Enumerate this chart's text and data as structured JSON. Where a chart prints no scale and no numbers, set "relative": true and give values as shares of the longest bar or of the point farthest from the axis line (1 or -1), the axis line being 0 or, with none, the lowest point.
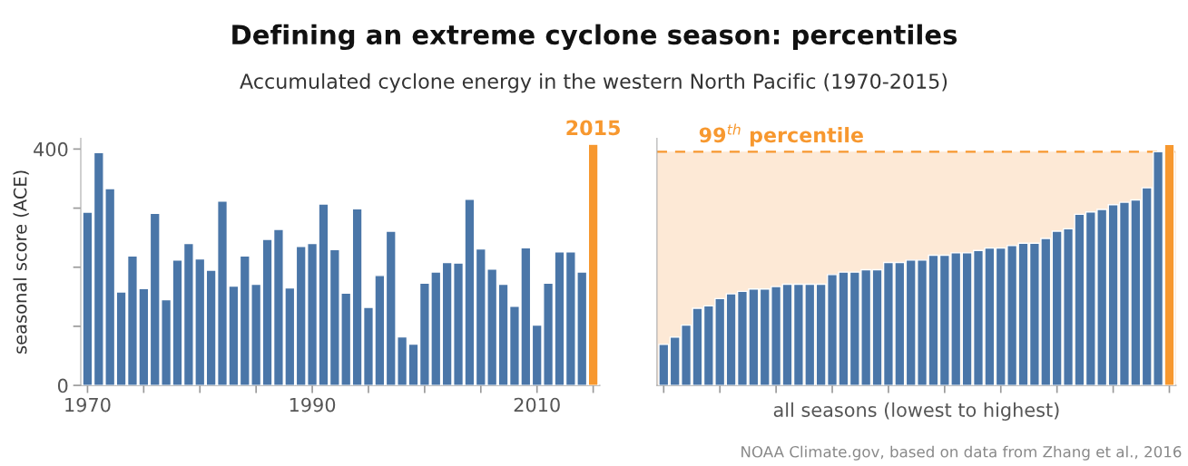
{
  "chart_data": [
    {
      "type": "bar",
      "title": "Defining an extreme cyclone season: percentiles",
      "subtitle": "Accumulated cyclone energy in the western North Pacific (1970-2015)",
      "ylabel": "seasonal score (ACE)",
      "x": [
        1970,
        1971,
        1972,
        1973,
        1974,
        1975,
        1976,
        1977,
        1978,
        1979,
        1980,
        1981,
        1982,
        1983,
        1984,
        1985,
        1986,
        1987,
        1988,
        1989,
        1990,
        1991,
        1992,
        1993,
        1994,
        1995,
        1996,
        1997,
        1998,
        1999,
        2000,
        2001,
        2002,
        2003,
        2004,
        2005,
        2006,
        2007,
        2008,
        2009,
        2010,
        2011,
        2012,
        2013,
        2014,
        2015
      ],
      "values": [
        293,
        394,
        333,
        158,
        219,
        164,
        291,
        145,
        212,
        240,
        214,
        195,
        312,
        168,
        219,
        171,
        247,
        264,
        165,
        235,
        240,
        307,
        230,
        156,
        299,
        132,
        186,
        261,
        82,
        70,
        173,
        192,
        208,
        207,
        315,
        231,
        197,
        171,
        134,
        233,
        102,
        173,
        226,
        226,
        192,
        408
      ],
      "colors": [
        "#4a76a8",
        "#4a76a8",
        "#4a76a8",
        "#4a76a8",
        "#4a76a8",
        "#4a76a8",
        "#4a76a8",
        "#4a76a8",
        "#4a76a8",
        "#4a76a8",
        "#4a76a8",
        "#4a76a8",
        "#4a76a8",
        "#4a76a8",
        "#4a76a8",
        "#4a76a8",
        "#4a76a8",
        "#4a76a8",
        "#4a76a8",
        "#4a76a8",
        "#4a76a8",
        "#4a76a8",
        "#4a76a8",
        "#4a76a8",
        "#4a76a8",
        "#4a76a8",
        "#4a76a8",
        "#4a76a8",
        "#4a76a8",
        "#4a76a8",
        "#4a76a8",
        "#4a76a8",
        "#4a76a8",
        "#4a76a8",
        "#4a76a8",
        "#4a76a8",
        "#4a76a8",
        "#4a76a8",
        "#4a76a8",
        "#4a76a8",
        "#4a76a8",
        "#4a76a8",
        "#4a76a8",
        "#4a76a8",
        "#4a76a8",
        "#f7982f"
      ],
      "xlim": [
        1969.4,
        2015.6
      ],
      "xticks": [
        1970,
        {
          "value": 1975,
          "label": null
        },
        {
          "value": 1980,
          "label": null
        },
        {
          "value": 1985,
          "label": null
        },
        1990,
        {
          "value": 1995,
          "label": null
        },
        {
          "value": 2000,
          "label": null
        },
        {
          "value": 2005,
          "label": null
        },
        2010,
        {
          "value": 2015,
          "label": null
        }
      ],
      "ylim": [
        0,
        418
      ],
      "yticks": [
        0,
        {
          "value": 100,
          "label": null
        },
        {
          "value": 200,
          "label": null
        },
        {
          "value": 300,
          "label": null
        },
        400
      ],
      "annotations": [
        {
          "text": "2015",
          "x": 2015,
          "y": 408
        }
      ],
      "grid": false
    },
    {
      "type": "bar",
      "xlabel": "all seasons (lowest to highest)",
      "categories": [
        null,
        null,
        null,
        null,
        null,
        null,
        null,
        null,
        null,
        null,
        null,
        null,
        null,
        null,
        null,
        null,
        null,
        null,
        null,
        null,
        null,
        null,
        null,
        null,
        null,
        null,
        null,
        null,
        null,
        null,
        null,
        null,
        null,
        null,
        null,
        null,
        null,
        null,
        null,
        null,
        null,
        null,
        null,
        null,
        null,
        null
      ],
      "relative": true,
      "values": [
        0.17,
        0.2,
        0.25,
        0.32,
        0.33,
        0.36,
        0.38,
        0.39,
        0.4,
        0.4,
        0.41,
        0.42,
        0.42,
        0.42,
        0.42,
        0.46,
        0.47,
        0.47,
        0.48,
        0.48,
        0.51,
        0.51,
        0.52,
        0.52,
        0.54,
        0.54,
        0.55,
        0.55,
        0.56,
        0.57,
        0.57,
        0.58,
        0.59,
        0.59,
        0.61,
        0.64,
        0.65,
        0.71,
        0.72,
        0.73,
        0.75,
        0.76,
        0.77,
        0.82,
        0.97,
        1
      ],
      "colors": [
        "#4a76a8",
        "#4a76a8",
        "#4a76a8",
        "#4a76a8",
        "#4a76a8",
        "#4a76a8",
        "#4a76a8",
        "#4a76a8",
        "#4a76a8",
        "#4a76a8",
        "#4a76a8",
        "#4a76a8",
        "#4a76a8",
        "#4a76a8",
        "#4a76a8",
        "#4a76a8",
        "#4a76a8",
        "#4a76a8",
        "#4a76a8",
        "#4a76a8",
        "#4a76a8",
        "#4a76a8",
        "#4a76a8",
        "#4a76a8",
        "#4a76a8",
        "#4a76a8",
        "#4a76a8",
        "#4a76a8",
        "#4a76a8",
        "#4a76a8",
        "#4a76a8",
        "#4a76a8",
        "#4a76a8",
        "#4a76a8",
        "#4a76a8",
        "#4a76a8",
        "#4a76a8",
        "#4a76a8",
        "#4a76a8",
        "#4a76a8",
        "#4a76a8",
        "#4a76a8",
        "#4a76a8",
        "#4a76a8",
        "#4a76a8",
        "#f7982f"
      ],
      "ref_lines": [
        {
          "axis": "y",
          "value": 0.97,
          "label": "99$^{th}$ percentile",
          "color": "#f7982f",
          "line_style": "dashed"
        }
      ],
      "bands": [
        {
          "axis": "y",
          "from": 0,
          "to": 0.97,
          "color": "#fde9d6"
        }
      ],
      "annotations": [
        "NOAA Climate.gov, based on data from Zhang et al., 2016"
      ],
      "grid": false
    }
  ]
}
